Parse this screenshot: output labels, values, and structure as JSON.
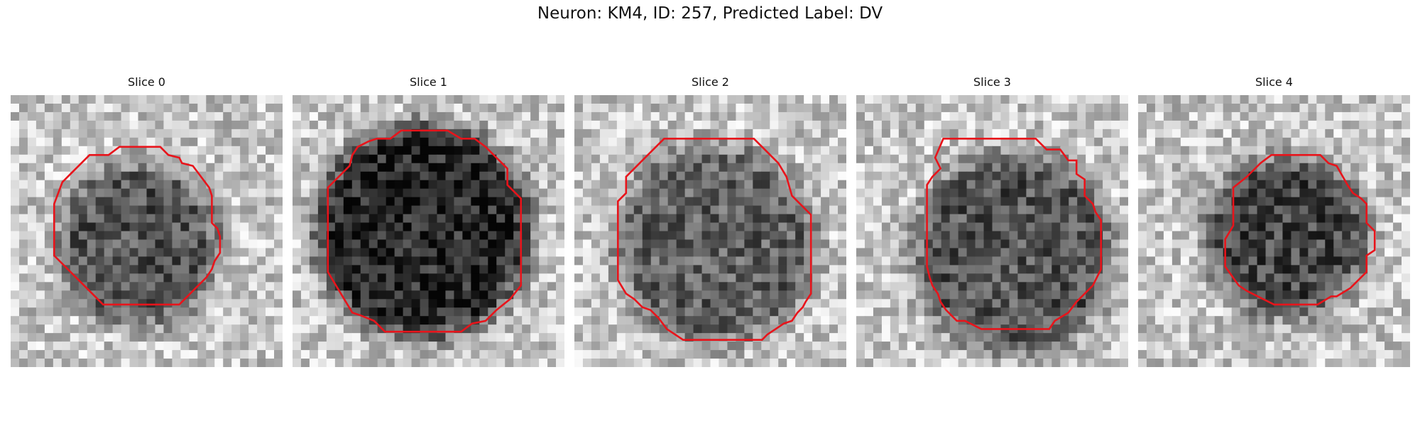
{
  "figure": {
    "title": "Neuron: KM4, ID: 257, Predicted Label: DV"
  },
  "panels": [
    {
      "title": "Slice 0",
      "seed": 11,
      "center": [
        0.47,
        0.55
      ],
      "radius": 0.3,
      "darkness": 0.45,
      "contour": [
        [
          0.4,
          0.19
        ],
        [
          0.55,
          0.19
        ],
        [
          0.58,
          0.22
        ],
        [
          0.62,
          0.23
        ],
        [
          0.63,
          0.25
        ],
        [
          0.67,
          0.26
        ],
        [
          0.7,
          0.3
        ],
        [
          0.73,
          0.34
        ],
        [
          0.74,
          0.37
        ],
        [
          0.74,
          0.47
        ],
        [
          0.76,
          0.49
        ],
        [
          0.77,
          0.52
        ],
        [
          0.77,
          0.58
        ],
        [
          0.75,
          0.61
        ],
        [
          0.74,
          0.64
        ],
        [
          0.72,
          0.67
        ],
        [
          0.7,
          0.69
        ],
        [
          0.68,
          0.71
        ],
        [
          0.65,
          0.74
        ],
        [
          0.62,
          0.77
        ],
        [
          0.34,
          0.77
        ],
        [
          0.25,
          0.68
        ],
        [
          0.16,
          0.59
        ],
        [
          0.16,
          0.4
        ],
        [
          0.19,
          0.32
        ],
        [
          0.21,
          0.3
        ],
        [
          0.25,
          0.26
        ],
        [
          0.29,
          0.22
        ],
        [
          0.36,
          0.22
        ]
      ]
    },
    {
      "title": "Slice 1",
      "seed": 23,
      "center": [
        0.48,
        0.5
      ],
      "radius": 0.4,
      "darkness": 0.62,
      "contour": [
        [
          0.4,
          0.13
        ],
        [
          0.57,
          0.13
        ],
        [
          0.62,
          0.16
        ],
        [
          0.67,
          0.16
        ],
        [
          0.71,
          0.19
        ],
        [
          0.76,
          0.24
        ],
        [
          0.79,
          0.27
        ],
        [
          0.79,
          0.33
        ],
        [
          0.84,
          0.38
        ],
        [
          0.84,
          0.7
        ],
        [
          0.8,
          0.75
        ],
        [
          0.75,
          0.79
        ],
        [
          0.71,
          0.83
        ],
        [
          0.66,
          0.84
        ],
        [
          0.62,
          0.87
        ],
        [
          0.34,
          0.87
        ],
        [
          0.3,
          0.83
        ],
        [
          0.25,
          0.81
        ],
        [
          0.22,
          0.8
        ],
        [
          0.19,
          0.75
        ],
        [
          0.13,
          0.65
        ],
        [
          0.13,
          0.34
        ],
        [
          0.18,
          0.29
        ],
        [
          0.21,
          0.26
        ],
        [
          0.22,
          0.22
        ],
        [
          0.24,
          0.19
        ],
        [
          0.28,
          0.17
        ],
        [
          0.31,
          0.16
        ],
        [
          0.36,
          0.16
        ]
      ]
    },
    {
      "title": "Slice 2",
      "seed": 37,
      "center": [
        0.52,
        0.55
      ],
      "radius": 0.37,
      "darkness": 0.4,
      "contour": [
        [
          0.33,
          0.16
        ],
        [
          0.66,
          0.16
        ],
        [
          0.69,
          0.19
        ],
        [
          0.72,
          0.22
        ],
        [
          0.75,
          0.25
        ],
        [
          0.78,
          0.3
        ],
        [
          0.8,
          0.37
        ],
        [
          0.83,
          0.4
        ],
        [
          0.87,
          0.44
        ],
        [
          0.87,
          0.73
        ],
        [
          0.85,
          0.76
        ],
        [
          0.84,
          0.78
        ],
        [
          0.82,
          0.8
        ],
        [
          0.8,
          0.83
        ],
        [
          0.77,
          0.84
        ],
        [
          0.74,
          0.86
        ],
        [
          0.71,
          0.88
        ],
        [
          0.69,
          0.9
        ],
        [
          0.63,
          0.9
        ],
        [
          0.6,
          0.9
        ],
        [
          0.4,
          0.9
        ],
        [
          0.37,
          0.88
        ],
        [
          0.34,
          0.86
        ],
        [
          0.31,
          0.82
        ],
        [
          0.28,
          0.79
        ],
        [
          0.25,
          0.78
        ],
        [
          0.22,
          0.75
        ],
        [
          0.19,
          0.73
        ],
        [
          0.16,
          0.68
        ],
        [
          0.16,
          0.39
        ],
        [
          0.19,
          0.36
        ],
        [
          0.19,
          0.3
        ],
        [
          0.22,
          0.27
        ],
        [
          0.26,
          0.23
        ]
      ]
    },
    {
      "title": "Slice 3",
      "seed": 51,
      "center": [
        0.58,
        0.58
      ],
      "radius": 0.37,
      "darkness": 0.45,
      "contour": [
        [
          0.32,
          0.16
        ],
        [
          0.66,
          0.16
        ],
        [
          0.7,
          0.2
        ],
        [
          0.75,
          0.2
        ],
        [
          0.78,
          0.24
        ],
        [
          0.81,
          0.24
        ],
        [
          0.81,
          0.29
        ],
        [
          0.84,
          0.31
        ],
        [
          0.84,
          0.37
        ],
        [
          0.87,
          0.4
        ],
        [
          0.88,
          0.43
        ],
        [
          0.9,
          0.46
        ],
        [
          0.9,
          0.64
        ],
        [
          0.87,
          0.7
        ],
        [
          0.81,
          0.76
        ],
        [
          0.78,
          0.8
        ],
        [
          0.73,
          0.83
        ],
        [
          0.71,
          0.86
        ],
        [
          0.59,
          0.86
        ],
        [
          0.46,
          0.86
        ],
        [
          0.4,
          0.83
        ],
        [
          0.37,
          0.83
        ],
        [
          0.33,
          0.79
        ],
        [
          0.31,
          0.76
        ],
        [
          0.3,
          0.73
        ],
        [
          0.28,
          0.7
        ],
        [
          0.27,
          0.67
        ],
        [
          0.26,
          0.63
        ],
        [
          0.26,
          0.33
        ],
        [
          0.28,
          0.3
        ],
        [
          0.31,
          0.27
        ],
        [
          0.29,
          0.23
        ]
      ]
    },
    {
      "title": "Slice 4",
      "seed": 67,
      "center": [
        0.55,
        0.52
      ],
      "radius": 0.3,
      "darkness": 0.5,
      "contour": [
        [
          0.49,
          0.22
        ],
        [
          0.67,
          0.22
        ],
        [
          0.7,
          0.25
        ],
        [
          0.73,
          0.26
        ],
        [
          0.77,
          0.33
        ],
        [
          0.79,
          0.36
        ],
        [
          0.82,
          0.38
        ],
        [
          0.84,
          0.4
        ],
        [
          0.84,
          0.47
        ],
        [
          0.87,
          0.5
        ],
        [
          0.87,
          0.57
        ],
        [
          0.84,
          0.59
        ],
        [
          0.84,
          0.65
        ],
        [
          0.81,
          0.68
        ],
        [
          0.78,
          0.71
        ],
        [
          0.73,
          0.74
        ],
        [
          0.71,
          0.74
        ],
        [
          0.66,
          0.77
        ],
        [
          0.5,
          0.77
        ],
        [
          0.44,
          0.74
        ],
        [
          0.4,
          0.72
        ],
        [
          0.37,
          0.7
        ],
        [
          0.32,
          0.63
        ],
        [
          0.32,
          0.53
        ],
        [
          0.35,
          0.48
        ],
        [
          0.35,
          0.34
        ],
        [
          0.4,
          0.3
        ],
        [
          0.45,
          0.25
        ]
      ]
    }
  ],
  "style": {
    "contour_color": "#e8141b"
  }
}
